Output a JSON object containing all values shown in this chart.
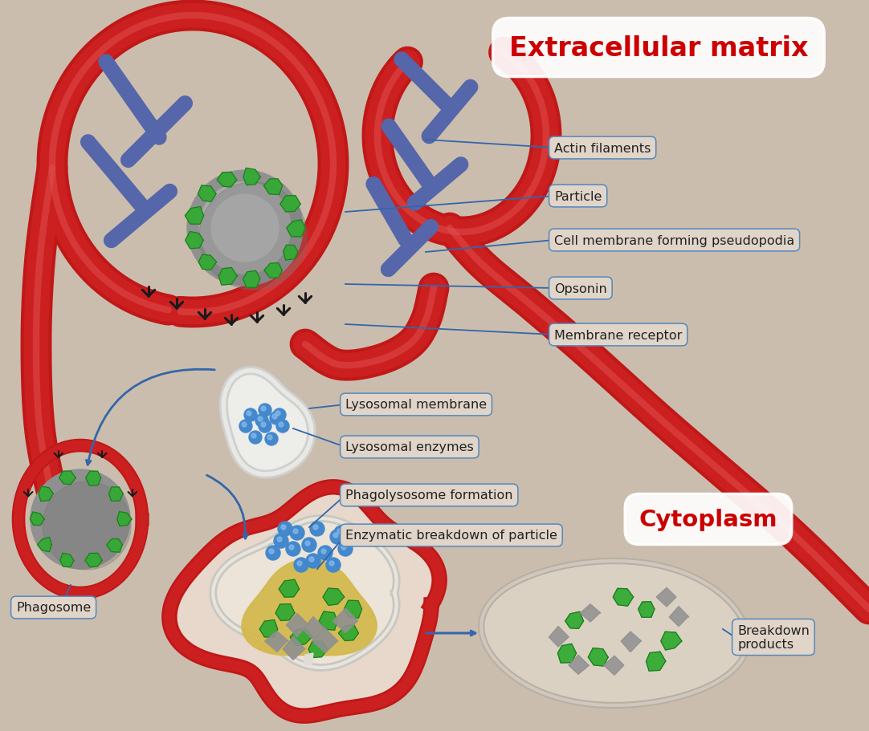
{
  "background_color": "#cbbdad",
  "title_extracellular": "Extracellular matrix",
  "title_cytoplasm": "Cytoplasm",
  "label_actin": "Actin filaments",
  "label_particle": "Particle",
  "label_membrane": "Cell membrane forming pseudopodia",
  "label_opsonin": "Opsonin",
  "label_receptor": "Membrane receptor",
  "label_lysosomal_membrane": "Lysosomal membrane",
  "label_lysosomal_enzymes": "Lysosomal enzymes",
  "label_phagolysosome": "Phagolysosome formation",
  "label_enzymatic": "Enzymatic breakdown of particle",
  "label_phagosome": "Phagosome",
  "label_breakdown": "Breakdown\nproducts",
  "red_membrane_color": "#cc2020",
  "blue_filament_color": "#5566aa",
  "label_bg": "#e0d5c8",
  "label_border": "#5588bb",
  "label_text_color": "#222222",
  "title_ec_color": "#cc0000",
  "arrow_color": "#3366aa",
  "membrane_lw": 22,
  "filament_lw": 14
}
